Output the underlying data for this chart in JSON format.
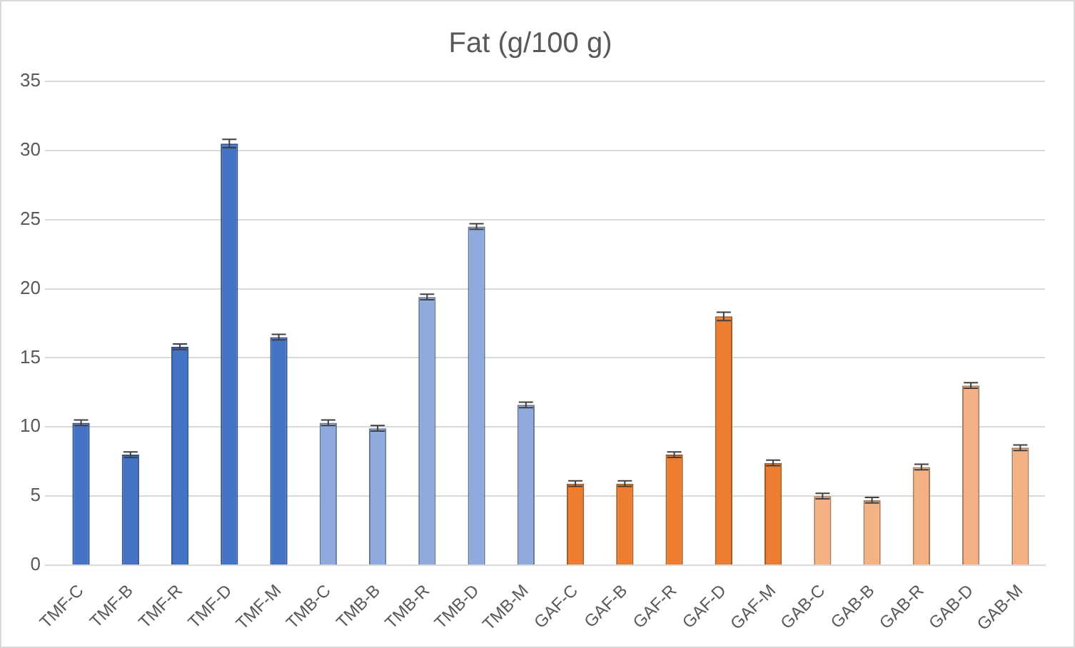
{
  "chart_data": {
    "type": "bar",
    "title": "Fat (g/100 g)",
    "categories": [
      "TMF-C",
      "TMF-B",
      "TMF-R",
      "TMF-D",
      "TMF-M",
      "TMB-C",
      "TMB-B",
      "TMB-R",
      "TMB-D",
      "TMB-M",
      "GAF-C",
      "GAF-B",
      "GAF-R",
      "GAF-D",
      "GAF-M",
      "GAB-C",
      "GAB-B",
      "GAB-R",
      "GAB-D",
      "GAB-M"
    ],
    "values": [
      10.3,
      8.0,
      15.8,
      30.5,
      16.5,
      10.3,
      9.9,
      19.4,
      24.5,
      11.6,
      5.9,
      5.9,
      8.0,
      18.0,
      7.4,
      5.0,
      4.7,
      7.1,
      13.0,
      8.5
    ],
    "errors": [
      0.2,
      0.2,
      0.2,
      0.3,
      0.2,
      0.2,
      0.2,
      0.2,
      0.2,
      0.2,
      0.2,
      0.2,
      0.2,
      0.3,
      0.2,
      0.2,
      0.2,
      0.2,
      0.2,
      0.2
    ],
    "colors": [
      "#4472c4",
      "#4472c4",
      "#4472c4",
      "#4472c4",
      "#4472c4",
      "#8faadc",
      "#8faadc",
      "#8faadc",
      "#8faadc",
      "#8faadc",
      "#ed7d31",
      "#ed7d31",
      "#ed7d31",
      "#ed7d31",
      "#ed7d31",
      "#f4b183",
      "#f4b183",
      "#f4b183",
      "#f4b183",
      "#f4b183"
    ],
    "ylim": [
      0,
      35
    ],
    "yticks": [
      0,
      5,
      10,
      15,
      20,
      25,
      30,
      35
    ],
    "grid": "y",
    "legend": false
  }
}
